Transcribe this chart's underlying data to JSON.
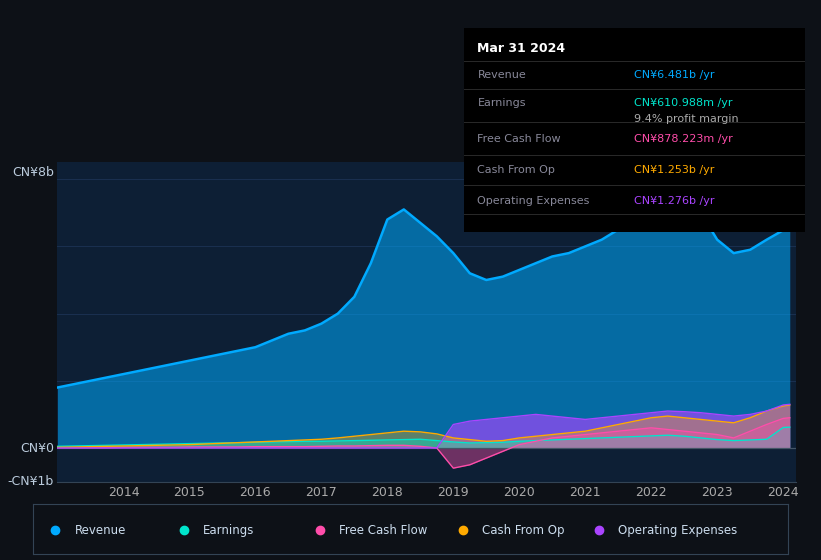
{
  "bg_color": "#0d1117",
  "plot_bg_color": "#0d1f35",
  "ylabel": "CN¥8b",
  "ylabel_neg": "-CN¥1b",
  "ylabel_zero": "CN¥0",
  "x_labels": [
    "2014",
    "2015",
    "2016",
    "2017",
    "2018",
    "2019",
    "2020",
    "2021",
    "2022",
    "2023",
    "2024"
  ],
  "colors": {
    "revenue": "#00aaff",
    "earnings": "#00e5cc",
    "free_cash_flow": "#ff4daa",
    "cash_from_op": "#ffaa00",
    "operating_expenses": "#aa44ff"
  },
  "tooltip": {
    "date": "Mar 31 2024",
    "revenue_label": "Revenue",
    "revenue_value": "CN¥6.481b",
    "earnings_label": "Earnings",
    "earnings_value": "CN¥610.988m",
    "profit_margin": "9.4%",
    "fcf_label": "Free Cash Flow",
    "fcf_value": "CN¥878.223m",
    "cashop_label": "Cash From Op",
    "cashop_value": "CN¥1.253b",
    "opex_label": "Operating Expenses",
    "opex_value": "CN¥1.276b"
  },
  "years": [
    2013.0,
    2013.25,
    2013.5,
    2013.75,
    2014.0,
    2014.25,
    2014.5,
    2014.75,
    2015.0,
    2015.25,
    2015.5,
    2015.75,
    2016.0,
    2016.25,
    2016.5,
    2016.75,
    2017.0,
    2017.25,
    2017.5,
    2017.75,
    2018.0,
    2018.25,
    2018.5,
    2018.75,
    2019.0,
    2019.25,
    2019.5,
    2019.75,
    2020.0,
    2020.25,
    2020.5,
    2020.75,
    2021.0,
    2021.25,
    2021.5,
    2021.75,
    2022.0,
    2022.25,
    2022.5,
    2022.75,
    2023.0,
    2023.25,
    2023.5,
    2023.75,
    2024.0,
    2024.1
  ],
  "revenue": [
    1.8,
    1.9,
    2.0,
    2.1,
    2.2,
    2.3,
    2.4,
    2.5,
    2.6,
    2.7,
    2.8,
    2.9,
    3.0,
    3.2,
    3.4,
    3.5,
    3.7,
    4.0,
    4.5,
    5.5,
    6.8,
    7.1,
    6.7,
    6.3,
    5.8,
    5.2,
    5.0,
    5.1,
    5.3,
    5.5,
    5.7,
    5.8,
    6.0,
    6.2,
    6.5,
    6.8,
    7.2,
    7.5,
    7.3,
    7.0,
    6.2,
    5.8,
    5.9,
    6.2,
    6.48,
    6.5
  ],
  "earnings": [
    0.05,
    0.06,
    0.07,
    0.08,
    0.09,
    0.1,
    0.11,
    0.12,
    0.13,
    0.14,
    0.15,
    0.16,
    0.17,
    0.18,
    0.19,
    0.2,
    0.2,
    0.21,
    0.22,
    0.23,
    0.24,
    0.25,
    0.26,
    0.22,
    0.18,
    0.15,
    0.16,
    0.17,
    0.2,
    0.22,
    0.24,
    0.26,
    0.28,
    0.3,
    0.32,
    0.34,
    0.36,
    0.38,
    0.35,
    0.3,
    0.25,
    0.22,
    0.24,
    0.26,
    0.61,
    0.62
  ],
  "free_cash_flow": [
    0.01,
    0.01,
    0.01,
    0.01,
    0.02,
    0.02,
    0.02,
    0.02,
    0.03,
    0.03,
    0.03,
    0.03,
    0.04,
    0.04,
    0.04,
    0.04,
    0.05,
    0.06,
    0.06,
    0.07,
    0.08,
    0.08,
    0.05,
    0.0,
    -0.6,
    -0.5,
    -0.3,
    -0.1,
    0.1,
    0.2,
    0.3,
    0.35,
    0.4,
    0.45,
    0.5,
    0.55,
    0.6,
    0.55,
    0.5,
    0.45,
    0.4,
    0.3,
    0.5,
    0.7,
    0.88,
    0.9
  ],
  "cash_from_op": [
    0.02,
    0.03,
    0.04,
    0.05,
    0.06,
    0.07,
    0.08,
    0.09,
    0.1,
    0.12,
    0.14,
    0.16,
    0.18,
    0.2,
    0.22,
    0.24,
    0.26,
    0.3,
    0.35,
    0.4,
    0.45,
    0.5,
    0.48,
    0.42,
    0.3,
    0.25,
    0.2,
    0.22,
    0.3,
    0.35,
    0.4,
    0.45,
    0.5,
    0.6,
    0.7,
    0.8,
    0.9,
    0.95,
    0.9,
    0.85,
    0.8,
    0.75,
    0.9,
    1.1,
    1.25,
    1.28
  ],
  "operating_expenses": [
    0.0,
    0.0,
    0.0,
    0.0,
    0.0,
    0.0,
    0.0,
    0.0,
    0.0,
    0.0,
    0.0,
    0.0,
    0.0,
    0.0,
    0.0,
    0.0,
    0.0,
    0.0,
    0.0,
    0.0,
    0.0,
    0.0,
    0.0,
    0.0,
    0.7,
    0.8,
    0.85,
    0.9,
    0.95,
    1.0,
    0.95,
    0.9,
    0.85,
    0.9,
    0.95,
    1.0,
    1.05,
    1.1,
    1.08,
    1.05,
    1.0,
    0.95,
    1.0,
    1.1,
    1.28,
    1.3
  ],
  "ylim": [
    -1.0,
    8.5
  ],
  "xlim": [
    2013.0,
    2024.2
  ]
}
